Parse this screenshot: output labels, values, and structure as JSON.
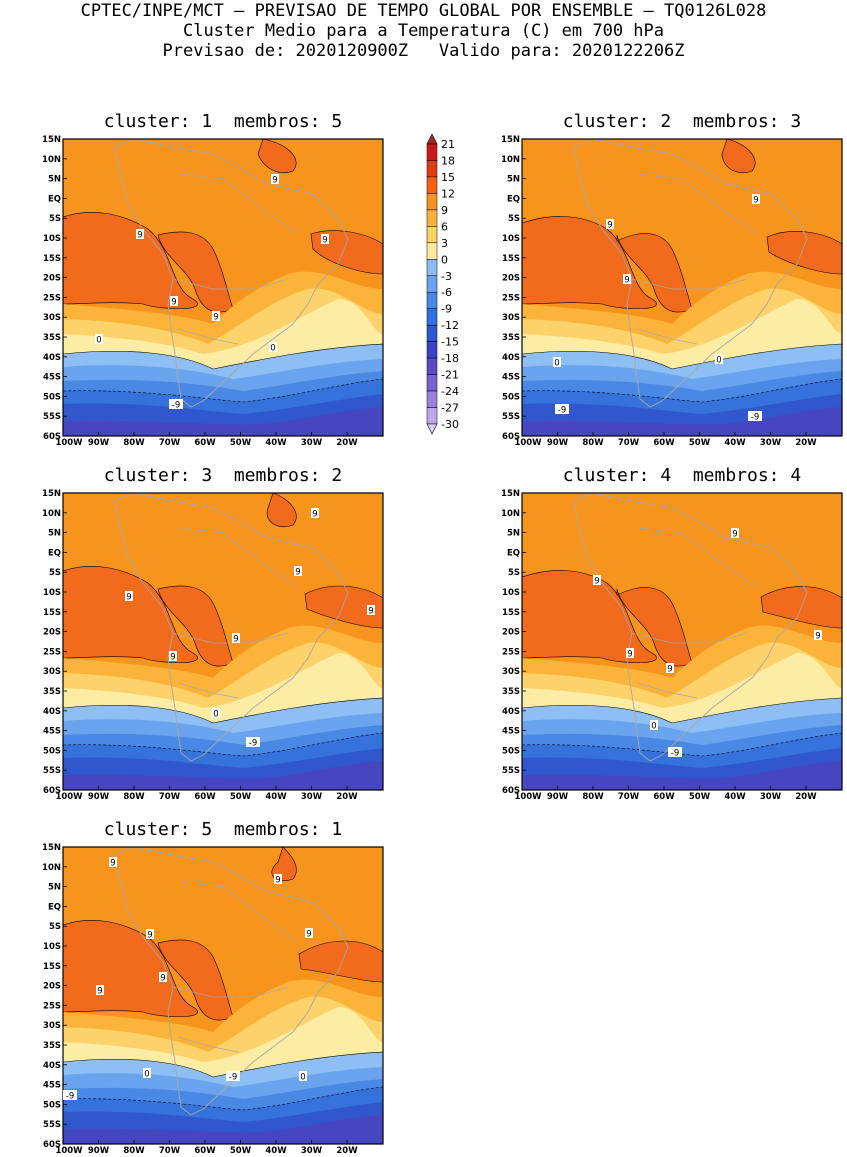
{
  "header": {
    "line1": "CPTEC/INPE/MCT – PREVISAO DE TEMPO GLOBAL POR ENSEMBLE – TQ0126L028",
    "line2": "Cluster Medio para a Temperatura (C) em 700 hPa",
    "line3": "Previsao de: 2020120900Z   Valido para: 2020122206Z"
  },
  "panels": [
    {
      "title": "cluster: 1  membros: 5",
      "labels": [
        "9",
        "9",
        "9",
        "9",
        "9",
        "0",
        "0",
        "-9"
      ]
    },
    {
      "title": "cluster: 2  membros: 3",
      "labels": [
        "9",
        "9",
        "9",
        "0",
        "0",
        "-9",
        "-9"
      ]
    },
    {
      "title": "cluster: 3  membros: 2",
      "labels": [
        "9",
        "9",
        "9",
        "9",
        "9",
        "9",
        "0",
        "-9"
      ]
    },
    {
      "title": "cluster: 4  membros: 4",
      "labels": [
        "9",
        "9",
        "9",
        "9",
        "9",
        "0",
        "-9"
      ]
    },
    {
      "title": "cluster: 5  membros: 1",
      "labels": [
        "9",
        "9",
        "9",
        "9",
        "9",
        "9",
        "0",
        "0",
        "-9",
        "-9"
      ]
    }
  ],
  "lat_ticks": [
    "15N",
    "10N",
    "5N",
    "EQ",
    "5S",
    "10S",
    "15S",
    "20S",
    "25S",
    "30S",
    "35S",
    "40S",
    "45S",
    "50S",
    "55S",
    "60S"
  ],
  "lon_ticks": [
    "100W",
    "90W",
    "80W",
    "70W",
    "60W",
    "50W",
    "40W",
    "30W",
    "20W"
  ],
  "colorbar": {
    "labels": [
      "21",
      "18",
      "15",
      "12",
      "9",
      "6",
      "3",
      "0",
      "-3",
      "-6",
      "-9",
      "-12",
      "-15",
      "-18",
      "-21",
      "-24",
      "-27",
      "-30"
    ],
    "colors": [
      "#a52929",
      "#c81a1a",
      "#e63a14",
      "#f85f0f",
      "#f8921f",
      "#f8b43a",
      "#fcd363",
      "#fdeaa0",
      "#8cbef5",
      "#6aa3f0",
      "#4a88e8",
      "#3170e0",
      "#2a58d0",
      "#3c44c3",
      "#5a48c4",
      "#7b62d2",
      "#9a82e0",
      "#bba8ec",
      "#dcd0f5"
    ]
  },
  "field_colors": {
    "c12": "#f26a1c",
    "c9": "#f7941d",
    "c6": "#fbb339",
    "c3": "#fdd26a",
    "c0": "#fdeca4",
    "m3": "#8ebff4",
    "m6": "#6aa4ee",
    "m9": "#4a88e6",
    "m12": "#3572db",
    "m15": "#3058cc",
    "m18": "#4647c0"
  }
}
